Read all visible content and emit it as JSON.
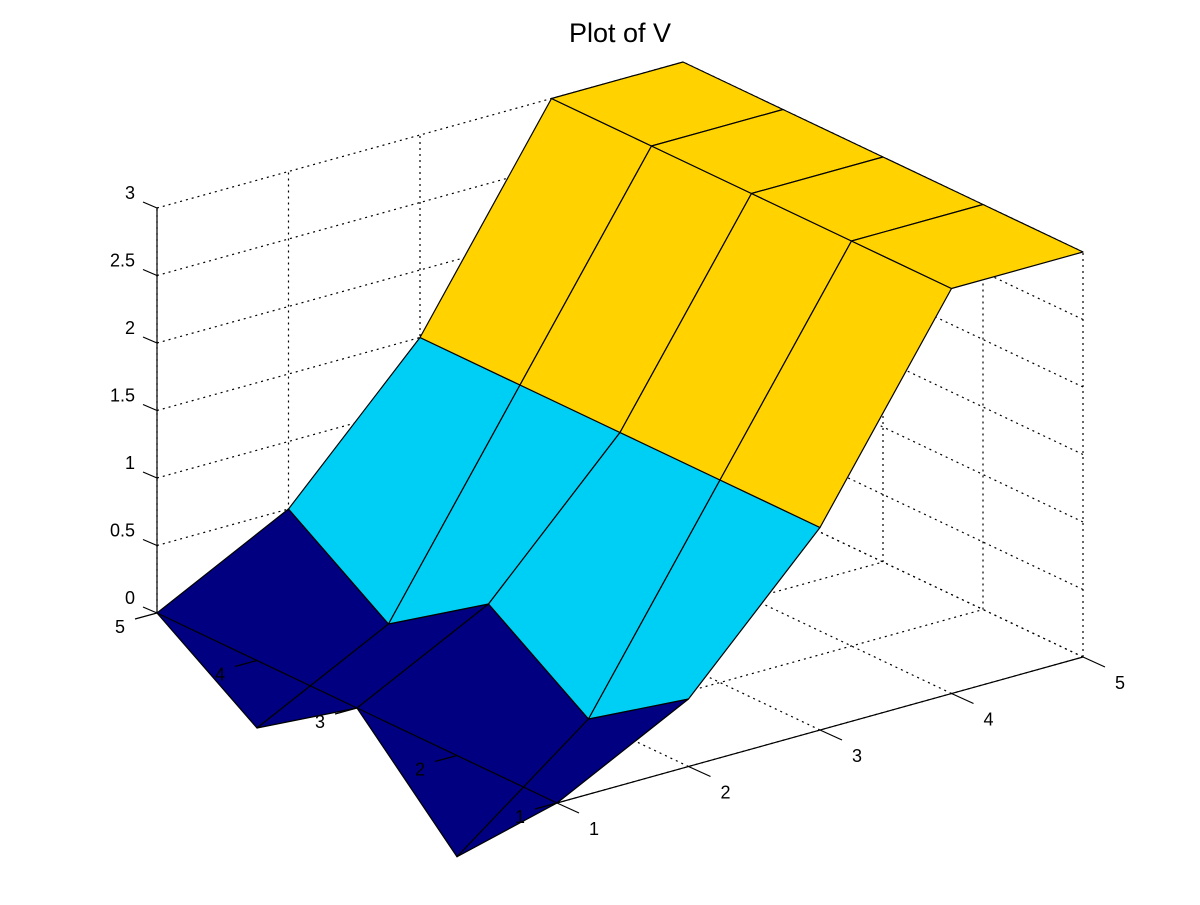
{
  "chart_data": {
    "type": "surface",
    "title": "Plot of V",
    "xlabel": "",
    "ylabel": "",
    "zlabel": "",
    "x": [
      1,
      2,
      3,
      4,
      5
    ],
    "y": [
      1,
      2,
      3,
      4,
      5
    ],
    "z": [
      [
        0,
        0.5,
        1.5,
        3,
        3
      ],
      [
        -0.75,
        0,
        1.5,
        3,
        3
      ],
      [
        0,
        0.5,
        1.5,
        3,
        3
      ],
      [
        -0.5,
        0,
        1.5,
        3,
        3
      ],
      [
        0,
        0.5,
        1.5,
        3,
        3
      ]
    ],
    "xlim": [
      1,
      5
    ],
    "ylim": [
      1,
      5
    ],
    "zlim": [
      0,
      3
    ],
    "x_ticks": [
      "1",
      "2",
      "3",
      "4",
      "5"
    ],
    "y_ticks": [
      "1",
      "2",
      "3",
      "4",
      "5"
    ],
    "z_ticks": [
      "0",
      "0.5",
      "1",
      "1.5",
      "2",
      "2.5",
      "3"
    ],
    "grid": true,
    "view": "3-D perspective, x axis toward front-right, y axis toward front-left",
    "colors": {
      "high_band": "#FFD200",
      "mid_band": "#00CFF5",
      "low_band": "#000080",
      "edge": "#000000",
      "grid": "#000000"
    }
  }
}
